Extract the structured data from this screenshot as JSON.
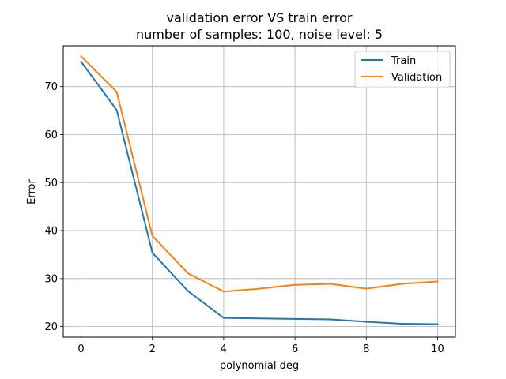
{
  "chart_data": {
    "type": "line",
    "title_line1": "validation error VS train error",
    "title_line2": "number of samples: 100, noise level: 5",
    "xlabel": "polynomial deg",
    "ylabel": "Error",
    "xlim": [
      -0.5,
      10.5
    ],
    "ylim": [
      17.8,
      78.5
    ],
    "xticks": [
      0,
      2,
      4,
      6,
      8,
      10
    ],
    "yticks": [
      20,
      30,
      40,
      50,
      60,
      70
    ],
    "grid": true,
    "legend_position": "top-right",
    "x": [
      0,
      1,
      2,
      3,
      4,
      5,
      6,
      7,
      8,
      9,
      10
    ],
    "series": [
      {
        "name": "Train",
        "color": "#1f77b4",
        "values": [
          75.2,
          65.1,
          35.4,
          27.4,
          21.8,
          21.7,
          21.6,
          21.5,
          21.0,
          20.6,
          20.5
        ]
      },
      {
        "name": "Validation",
        "color": "#ff7f0e",
        "values": [
          76.3,
          68.9,
          38.9,
          31.1,
          27.3,
          27.9,
          28.7,
          28.9,
          27.9,
          28.9,
          29.4
        ]
      }
    ]
  }
}
